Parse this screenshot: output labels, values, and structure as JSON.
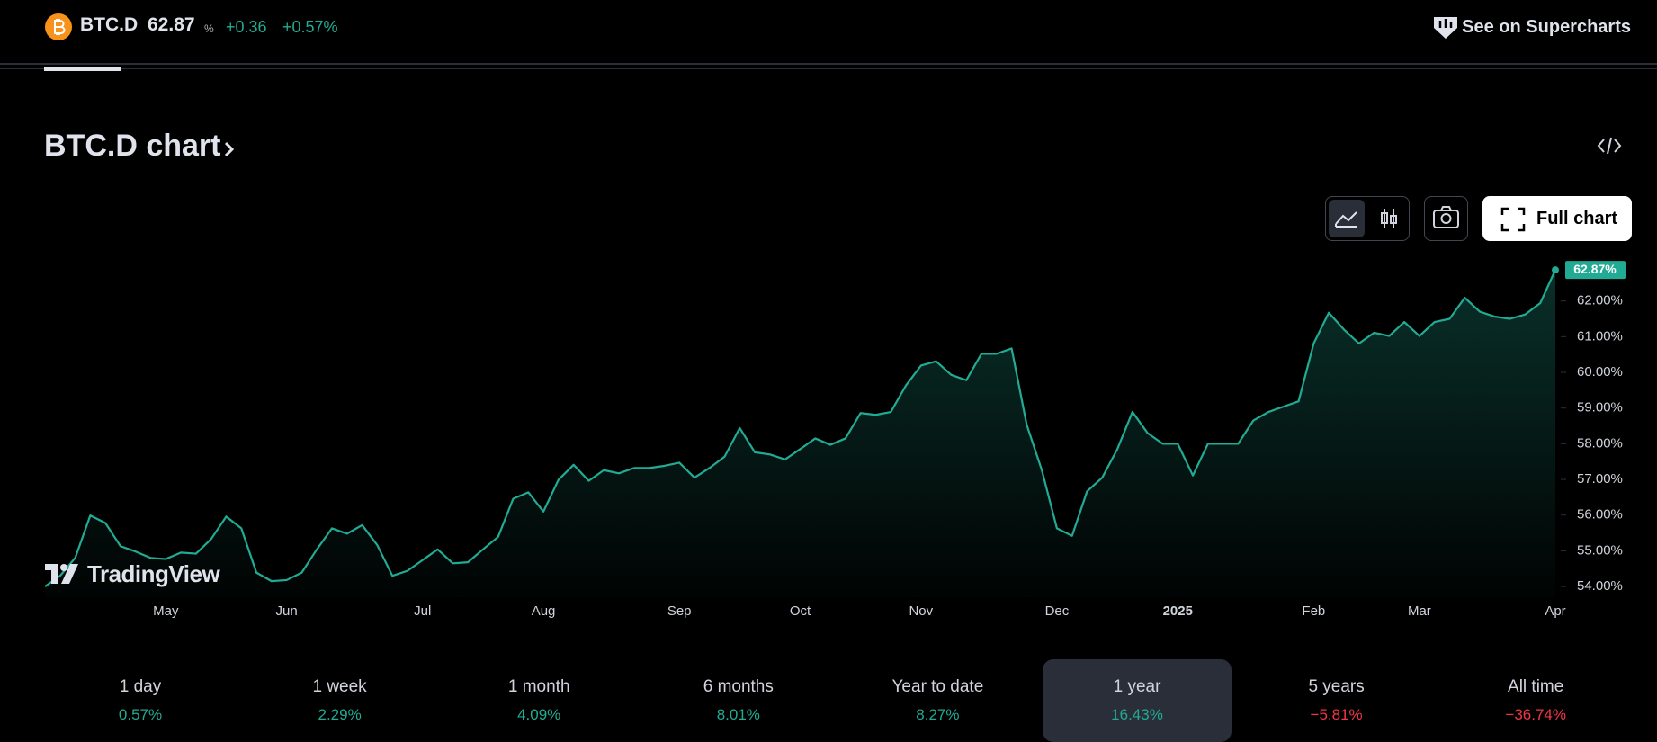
{
  "header": {
    "symbol": "BTC.D",
    "price": "62.87",
    "price_unit": "%",
    "change": "+0.36",
    "change_percent": "+0.57%",
    "link": "See on Supercharts"
  },
  "title": "BTC.D chart",
  "toolbar": {
    "full_chart": "Full chart"
  },
  "watermark": "TradingView",
  "chart_data": {
    "type": "line",
    "categories": [
      null,
      null,
      null,
      null,
      null,
      null,
      null,
      null,
      "May",
      null,
      null,
      null,
      null,
      null,
      null,
      null,
      "Jun",
      null,
      null,
      null,
      null,
      null,
      null,
      null,
      null,
      "Jul",
      null,
      null,
      null,
      null,
      null,
      null,
      null,
      "Aug",
      null,
      null,
      null,
      null,
      null,
      null,
      null,
      null,
      "Sep",
      null,
      null,
      null,
      null,
      null,
      null,
      null,
      "Oct",
      null,
      null,
      null,
      null,
      null,
      null,
      null,
      "Nov",
      null,
      null,
      null,
      null,
      null,
      null,
      null,
      null,
      "Dec",
      null,
      null,
      null,
      null,
      null,
      null,
      null,
      "2025",
      null,
      null,
      null,
      null,
      null,
      null,
      null,
      null,
      "Feb",
      null,
      null,
      null,
      null,
      null,
      null,
      "Mar",
      null,
      null,
      null,
      null,
      null,
      null,
      null,
      null,
      "Apr"
    ],
    "series": [
      {
        "color": "#22ab94",
        "values": [
          54.0,
          54.3,
          54.8,
          55.99,
          55.78,
          55.13,
          54.98,
          54.8,
          54.77,
          54.95,
          54.92,
          55.33,
          55.96,
          55.63,
          54.39,
          54.15,
          54.18,
          54.39,
          55.04,
          55.63,
          55.48,
          55.72,
          55.16,
          54.3,
          54.44,
          54.74,
          55.04,
          54.65,
          54.68,
          55.04,
          55.39,
          56.46,
          56.64,
          56.1,
          56.99,
          57.41,
          56.96,
          57.26,
          57.17,
          57.32,
          57.32,
          57.38,
          57.47,
          57.05,
          57.32,
          57.64,
          58.44,
          57.76,
          57.7,
          57.56,
          57.85,
          58.15,
          57.97,
          58.15,
          58.86,
          58.81,
          58.89,
          59.63,
          60.19,
          60.31,
          59.93,
          59.78,
          60.52,
          60.52,
          60.67,
          58.53,
          57.26,
          55.63,
          55.42,
          56.67,
          57.05,
          57.85,
          58.89,
          58.3,
          58.0,
          58.0,
          57.11,
          58.0,
          58.0,
          58.0,
          58.65,
          58.89,
          59.04,
          59.19,
          60.81,
          61.67,
          61.2,
          60.81,
          61.11,
          61.02,
          61.41,
          61.02,
          61.41,
          61.5,
          62.09,
          61.7,
          61.56,
          61.5,
          61.62,
          61.94,
          62.87
        ],
        "value_labels": [
          null,
          null,
          null,
          null,
          null,
          null,
          null,
          null,
          null,
          null,
          null,
          null,
          null,
          null,
          null,
          null,
          null,
          null,
          null,
          null,
          null,
          null,
          null,
          null,
          null,
          null,
          null,
          null,
          null,
          null,
          null,
          null,
          null,
          null,
          null,
          null,
          null,
          null,
          null,
          null,
          null,
          null,
          null,
          null,
          null,
          null,
          null,
          null,
          null,
          null,
          null,
          null,
          null,
          null,
          null,
          null,
          null,
          null,
          null,
          null,
          null,
          null,
          null,
          null,
          null,
          null,
          null,
          null,
          null,
          null,
          null,
          null,
          null,
          null,
          null,
          null,
          null,
          null,
          null,
          null,
          null,
          null,
          null,
          null,
          null,
          null,
          null,
          null,
          null,
          null,
          null,
          null,
          null,
          null,
          null,
          null,
          null,
          null,
          null,
          null,
          "62.87%"
        ]
      }
    ],
    "ylim": [
      53.7,
      63.05
    ],
    "yticks": [
      {
        "value": 54,
        "label": "54.00%"
      },
      {
        "value": 55,
        "label": "55.00%"
      },
      {
        "value": 56,
        "label": "56.00%"
      },
      {
        "value": 57,
        "label": "57.00%"
      },
      {
        "value": 58,
        "label": "58.00%"
      },
      {
        "value": 59,
        "label": "59.00%"
      },
      {
        "value": 60,
        "label": "60.00%"
      },
      {
        "value": 61,
        "label": "61.00%"
      },
      {
        "value": 62,
        "label": "62.00%"
      }
    ],
    "grid": false
  },
  "periods": [
    {
      "label": "1 day",
      "change": "0.57%"
    },
    {
      "label": "1 week",
      "change": "2.29%"
    },
    {
      "label": "1 month",
      "change": "4.09%"
    },
    {
      "label": "6 months",
      "change": "8.01%"
    },
    {
      "label": "Year to date",
      "change": "8.27%"
    },
    {
      "label": "1 year",
      "change": "16.43%"
    },
    {
      "label": "5 years",
      "change": "−5.81%"
    },
    {
      "label": "All time",
      "change": "−36.74%"
    }
  ],
  "selected_period": 5
}
